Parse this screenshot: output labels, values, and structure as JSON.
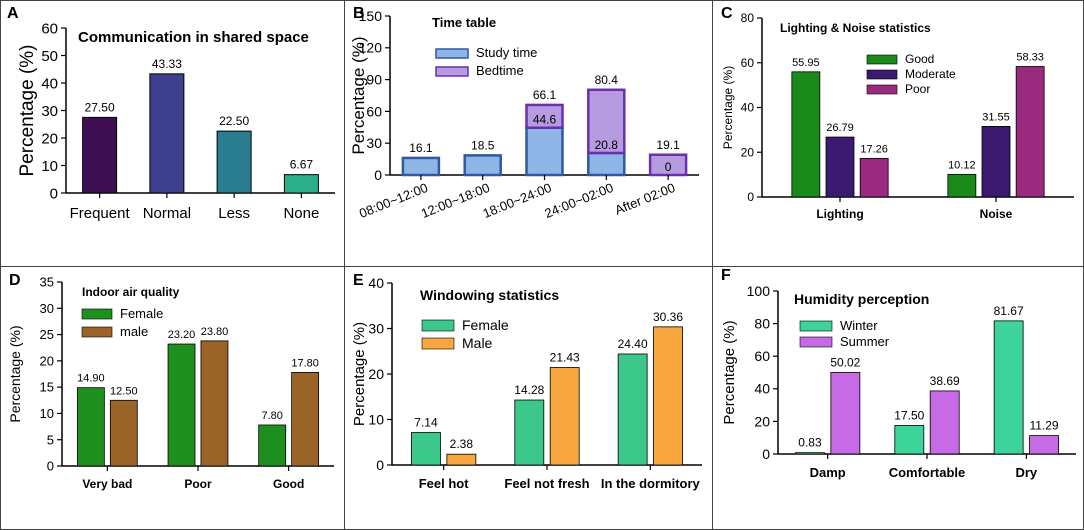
{
  "panels": {
    "A": {
      "label": "A"
    },
    "B": {
      "label": "B"
    },
    "C": {
      "label": "C"
    },
    "D": {
      "label": "D"
    },
    "E": {
      "label": "E"
    },
    "F": {
      "label": "F"
    }
  },
  "chart_data": [
    {
      "id": "A",
      "type": "bar",
      "title": "Communication in shared space",
      "ylabel": "Percentage (%)",
      "xlabel": "",
      "ylim": [
        0,
        60
      ],
      "yticks": [
        0,
        10,
        20,
        30,
        40,
        50,
        60
      ],
      "categories": [
        "Frequent",
        "Normal",
        "Less",
        "None"
      ],
      "values": [
        27.5,
        43.33,
        22.5,
        6.67
      ],
      "labels": [
        "27.50",
        "43.33",
        "22.50",
        "6.67"
      ],
      "colors": [
        "#3d0e52",
        "#3f3f8f",
        "#2a7d8e",
        "#2bae8a"
      ]
    },
    {
      "id": "B",
      "type": "bar",
      "stacked": true,
      "title": "Time table",
      "ylabel": "Percentage (%)",
      "xlabel": "",
      "ylim": [
        0,
        150
      ],
      "yticks": [
        0,
        30,
        60,
        90,
        120,
        150
      ],
      "categories": [
        "08:00~12:00",
        "12:00~18:00",
        "18:00~24:00",
        "24:00~02:00",
        "After  02:00"
      ],
      "series": [
        {
          "name": "Study time",
          "values": [
            16.1,
            18.5,
            44.6,
            20.8,
            0
          ],
          "color": "#8fb4e6",
          "edge": "#2e5aa0"
        },
        {
          "name": "Bedtime",
          "values": [
            0,
            0,
            21.5,
            59.6,
            19.1
          ],
          "color": "#b79be0",
          "edge": "#6a2fb0"
        }
      ],
      "inner_labels": [
        "",
        "",
        "44.6",
        "20.8",
        "0"
      ],
      "top_labels": [
        "16.1",
        "18.5",
        "66.1",
        "80.4",
        "19.1"
      ]
    },
    {
      "id": "C",
      "type": "bar",
      "title": "Lighting & Noise statistics",
      "ylabel": "Percentage (%)",
      "xlabel": "",
      "ylim": [
        0,
        80
      ],
      "yticks": [
        0,
        20,
        40,
        60,
        80
      ],
      "categories": [
        "Lighting",
        "Noise"
      ],
      "series": [
        {
          "name": "Good",
          "values": [
            55.95,
            10.12
          ],
          "labels": [
            "55.95",
            "10.12"
          ],
          "color": "#1a8a1a"
        },
        {
          "name": "Moderate",
          "values": [
            26.79,
            31.55
          ],
          "labels": [
            "26.79",
            "31.55"
          ],
          "color": "#3a1a6e"
        },
        {
          "name": "Poor",
          "values": [
            17.26,
            58.33
          ],
          "labels": [
            "17.26",
            "58.33"
          ],
          "color": "#9a2a7e"
        }
      ]
    },
    {
      "id": "D",
      "type": "bar",
      "title": "Indoor air quality",
      "ylabel": "Percentage (%)",
      "xlabel": "",
      "ylim": [
        0,
        35
      ],
      "yticks": [
        0,
        5,
        10,
        15,
        20,
        25,
        30,
        35
      ],
      "categories": [
        "Very bad",
        "Poor",
        "Good"
      ],
      "series": [
        {
          "name": "Female",
          "values": [
            14.9,
            23.2,
            7.8
          ],
          "labels": [
            "14.90",
            "23.20",
            "7.80"
          ],
          "color": "#1f8f1f"
        },
        {
          "name": "male",
          "values": [
            12.5,
            23.8,
            17.8
          ],
          "labels": [
            "12.50",
            "23.80",
            "17.80"
          ],
          "color": "#9a6428"
        }
      ]
    },
    {
      "id": "E",
      "type": "bar",
      "title": "Windowing statistics",
      "ylabel": "Percentage (%)",
      "xlabel": "",
      "ylim": [
        0,
        40
      ],
      "yticks": [
        0,
        10,
        20,
        30,
        40
      ],
      "categories": [
        "Feel hot",
        "Feel not fresh",
        "In the dormitory"
      ],
      "series": [
        {
          "name": "Female",
          "values": [
            7.14,
            14.28,
            24.4
          ],
          "labels": [
            "7.14",
            "14.28",
            "24.40"
          ],
          "color": "#3cc88a"
        },
        {
          "name": "Male",
          "values": [
            2.38,
            21.43,
            30.36
          ],
          "labels": [
            "2.38",
            "21.43",
            "30.36"
          ],
          "color": "#f7a640"
        }
      ]
    },
    {
      "id": "F",
      "type": "bar",
      "title": "Humidity perception",
      "ylabel": "Percentage (%)",
      "xlabel": "",
      "ylim": [
        0,
        100
      ],
      "yticks": [
        0,
        20,
        40,
        60,
        80,
        100
      ],
      "categories": [
        "Damp",
        "Comfortable",
        "Dry"
      ],
      "series": [
        {
          "name": "Winter",
          "values": [
            0.83,
            17.5,
            81.67
          ],
          "labels": [
            "0.83",
            "17.50",
            "81.67"
          ],
          "color": "#3cd49a"
        },
        {
          "name": "Summer",
          "values": [
            50.02,
            38.69,
            11.29
          ],
          "labels": [
            "50.02",
            "38.69",
            "11.29"
          ],
          "color": "#c66ae6"
        }
      ]
    }
  ]
}
